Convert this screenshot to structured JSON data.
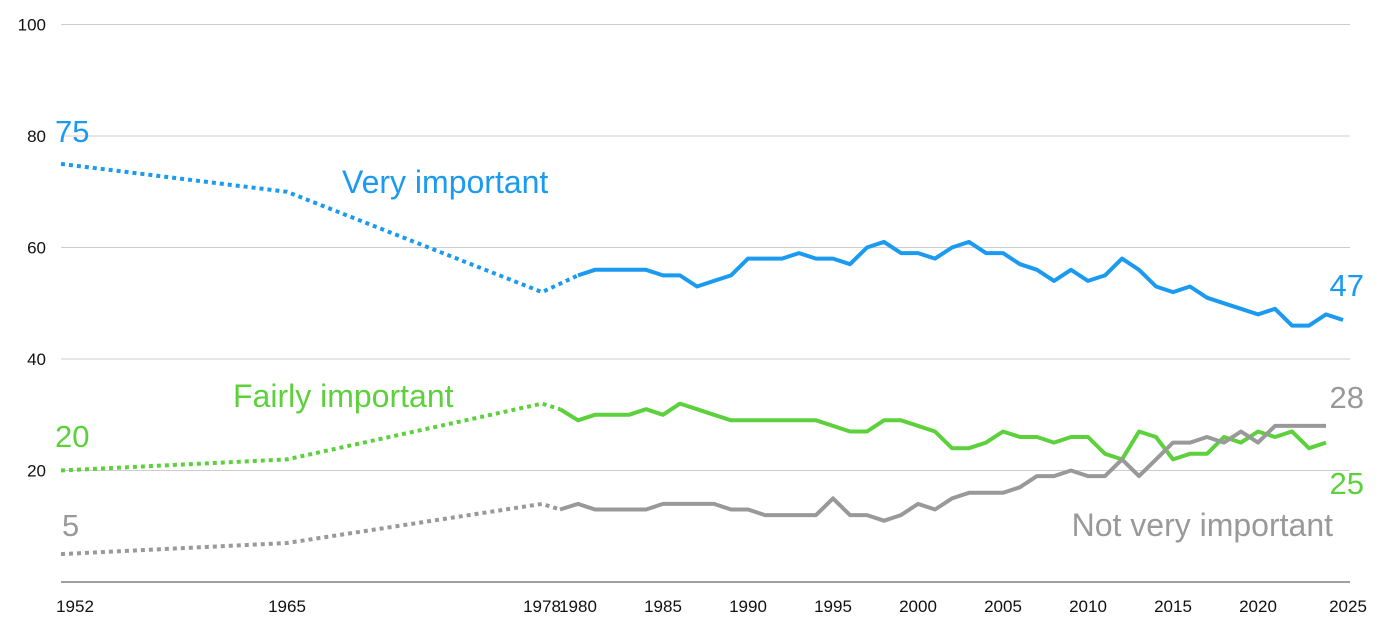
{
  "chart_data": {
    "type": "line",
    "title": "",
    "xlabel": "",
    "ylabel": "",
    "xlim": [
      1952,
      2025
    ],
    "ylim": [
      0,
      100
    ],
    "grid": true,
    "y_ticks": [
      "20",
      "40",
      "60",
      "80",
      "100"
    ],
    "x_ticks": [
      "1952",
      "1965",
      "1978",
      "1980",
      "1985",
      "1990",
      "1995",
      "2000",
      "2005",
      "2010",
      "2015",
      "2020",
      "2025"
    ],
    "series": [
      {
        "name": "Very important",
        "label": "Very important",
        "color": "#1a9af0",
        "early_points": [
          [
            1952,
            75
          ],
          [
            1965,
            70
          ],
          [
            1978,
            52
          ],
          [
            1980,
            55
          ]
        ],
        "points": [
          [
            1980,
            55
          ],
          [
            1981,
            56
          ],
          [
            1982,
            56
          ],
          [
            1983,
            56
          ],
          [
            1984,
            56
          ],
          [
            1985,
            55
          ],
          [
            1986,
            55
          ],
          [
            1987,
            53
          ],
          [
            1988,
            54
          ],
          [
            1989,
            55
          ],
          [
            1990,
            58
          ],
          [
            1991,
            58
          ],
          [
            1992,
            58
          ],
          [
            1993,
            59
          ],
          [
            1994,
            58
          ],
          [
            1995,
            58
          ],
          [
            1996,
            57
          ],
          [
            1997,
            60
          ],
          [
            1998,
            61
          ],
          [
            1999,
            59
          ],
          [
            2000,
            59
          ],
          [
            2001,
            58
          ],
          [
            2002,
            60
          ],
          [
            2003,
            61
          ],
          [
            2004,
            59
          ],
          [
            2005,
            59
          ],
          [
            2006,
            57
          ],
          [
            2007,
            56
          ],
          [
            2008,
            54
          ],
          [
            2009,
            56
          ],
          [
            2010,
            54
          ],
          [
            2011,
            55
          ],
          [
            2012,
            58
          ],
          [
            2013,
            56
          ],
          [
            2014,
            53
          ],
          [
            2015,
            52
          ],
          [
            2016,
            53
          ],
          [
            2017,
            51
          ],
          [
            2018,
            50
          ],
          [
            2019,
            49
          ],
          [
            2020,
            48
          ],
          [
            2021,
            49
          ],
          [
            2022,
            46
          ],
          [
            2023,
            46
          ],
          [
            2024,
            48
          ],
          [
            2025,
            47
          ]
        ],
        "start_value_label": "75",
        "end_value_label": "47"
      },
      {
        "name": "Fairly important",
        "label": "Fairly important",
        "color": "#5cd13c",
        "early_points": [
          [
            1952,
            20
          ],
          [
            1965,
            22
          ],
          [
            1978,
            32
          ],
          [
            1979,
            31
          ]
        ],
        "points": [
          [
            1979,
            31
          ],
          [
            1980,
            29
          ],
          [
            1981,
            30
          ],
          [
            1982,
            30
          ],
          [
            1983,
            30
          ],
          [
            1984,
            31
          ],
          [
            1985,
            30
          ],
          [
            1986,
            32
          ],
          [
            1987,
            31
          ],
          [
            1988,
            30
          ],
          [
            1989,
            29
          ],
          [
            1990,
            29
          ],
          [
            1991,
            29
          ],
          [
            1992,
            29
          ],
          [
            1993,
            29
          ],
          [
            1994,
            29
          ],
          [
            1995,
            28
          ],
          [
            1996,
            27
          ],
          [
            1997,
            27
          ],
          [
            1998,
            29
          ],
          [
            1999,
            29
          ],
          [
            2000,
            28
          ],
          [
            2001,
            27
          ],
          [
            2002,
            24
          ],
          [
            2003,
            24
          ],
          [
            2004,
            25
          ],
          [
            2005,
            27
          ],
          [
            2006,
            26
          ],
          [
            2007,
            26
          ],
          [
            2008,
            25
          ],
          [
            2009,
            26
          ],
          [
            2010,
            26
          ],
          [
            2011,
            23
          ],
          [
            2012,
            22
          ],
          [
            2013,
            27
          ],
          [
            2014,
            26
          ],
          [
            2015,
            22
          ],
          [
            2016,
            23
          ],
          [
            2017,
            23
          ],
          [
            2018,
            26
          ],
          [
            2019,
            25
          ],
          [
            2020,
            27
          ],
          [
            2021,
            26
          ],
          [
            2022,
            27
          ],
          [
            2023,
            24
          ],
          [
            2024,
            25
          ]
        ],
        "start_value_label": "20",
        "end_value_label": "25"
      },
      {
        "name": "Not very important",
        "label": "Not very important",
        "color": "#999999",
        "early_points": [
          [
            1952,
            5
          ],
          [
            1965,
            7
          ],
          [
            1978,
            14
          ],
          [
            1979,
            13
          ]
        ],
        "points": [
          [
            1979,
            13
          ],
          [
            1980,
            14
          ],
          [
            1981,
            13
          ],
          [
            1982,
            13
          ],
          [
            1983,
            13
          ],
          [
            1984,
            13
          ],
          [
            1985,
            14
          ],
          [
            1986,
            14
          ],
          [
            1987,
            14
          ],
          [
            1988,
            14
          ],
          [
            1989,
            13
          ],
          [
            1990,
            13
          ],
          [
            1991,
            12
          ],
          [
            1992,
            12
          ],
          [
            1993,
            12
          ],
          [
            1994,
            12
          ],
          [
            1995,
            15
          ],
          [
            1996,
            12
          ],
          [
            1997,
            12
          ],
          [
            1998,
            11
          ],
          [
            1999,
            12
          ],
          [
            2000,
            14
          ],
          [
            2001,
            13
          ],
          [
            2002,
            15
          ],
          [
            2003,
            16
          ],
          [
            2004,
            16
          ],
          [
            2005,
            16
          ],
          [
            2006,
            17
          ],
          [
            2007,
            19
          ],
          [
            2008,
            19
          ],
          [
            2009,
            20
          ],
          [
            2010,
            19
          ],
          [
            2011,
            19
          ],
          [
            2012,
            22
          ],
          [
            2013,
            19
          ],
          [
            2014,
            22
          ],
          [
            2015,
            25
          ],
          [
            2016,
            25
          ],
          [
            2017,
            26
          ],
          [
            2018,
            25
          ],
          [
            2019,
            27
          ],
          [
            2020,
            25
          ],
          [
            2021,
            28
          ],
          [
            2022,
            28
          ],
          [
            2023,
            28
          ],
          [
            2024,
            28
          ]
        ],
        "start_value_label": "5",
        "end_value_label": "28"
      }
    ]
  }
}
